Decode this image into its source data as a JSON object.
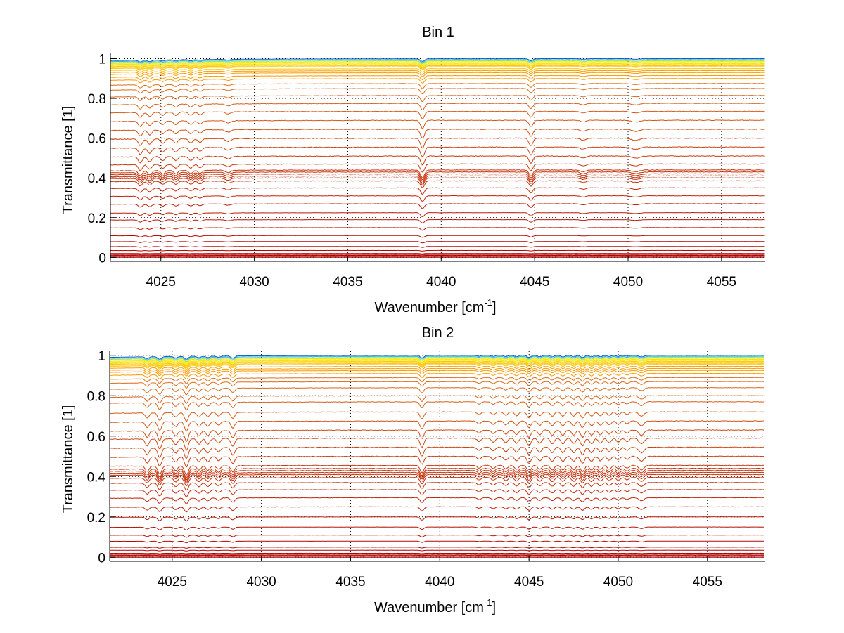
{
  "chart_data": [
    {
      "type": "line",
      "title": "Bin 1",
      "xlabel": "Wavenumber [cm^-1]",
      "xlabel_main": "Wavenumber [cm",
      "xlabel_sup": "-1",
      "xlabel_end": "]",
      "ylabel": "Transmittance [1]",
      "xlim": [
        4022.3,
        4057.3
      ],
      "ylim": [
        -0.02,
        1.03
      ],
      "xticks": [
        4025,
        4030,
        4035,
        4040,
        4045,
        4050,
        4055
      ],
      "xtick_labels": [
        "4025",
        "4030",
        "4035",
        "4040",
        "4045",
        "4050",
        "4055"
      ],
      "yticks": [
        0,
        0.2,
        0.4,
        0.6,
        0.8,
        1
      ],
      "ytick_labels": [
        "0",
        "0.2",
        "0.4",
        "0.6",
        "0.8",
        "1"
      ],
      "grid": true,
      "colormap": "jet (upper half: dark red → orange → yellow → cyan → blue)",
      "series_description": "Family of transmittance spectra at many attenuation levels, each a nearly flat baseline with absorption dips",
      "baselines": [
        0.0,
        0.005,
        0.01,
        0.015,
        0.02,
        0.035,
        0.055,
        0.08,
        0.11,
        0.15,
        0.19,
        0.225,
        0.27,
        0.31,
        0.35,
        0.385,
        0.4,
        0.41,
        0.42,
        0.43,
        0.44,
        0.47,
        0.51,
        0.555,
        0.6,
        0.645,
        0.69,
        0.735,
        0.775,
        0.815,
        0.85,
        0.875,
        0.9,
        0.915,
        0.93,
        0.94,
        0.95,
        0.96,
        0.965,
        0.97,
        0.975,
        0.98,
        0.985,
        0.99,
        0.995,
        1.0
      ],
      "absorption_lines": [
        {
          "x": 4023.9,
          "depth": 0.06,
          "width": 0.15
        },
        {
          "x": 4024.4,
          "depth": 0.05,
          "width": 0.15
        },
        {
          "x": 4025.1,
          "depth": 0.04,
          "width": 0.15
        },
        {
          "x": 4025.8,
          "depth": 0.04,
          "width": 0.15
        },
        {
          "x": 4026.6,
          "depth": 0.04,
          "width": 0.15
        },
        {
          "x": 4027.1,
          "depth": 0.035,
          "width": 0.15
        },
        {
          "x": 4028.6,
          "depth": 0.025,
          "width": 0.2
        },
        {
          "x": 4039.0,
          "depth": 0.09,
          "width": 0.15
        },
        {
          "x": 4044.8,
          "depth": 0.07,
          "width": 0.15
        },
        {
          "x": 4047.6,
          "depth": 0.02,
          "width": 0.2
        },
        {
          "x": 4050.4,
          "depth": 0.02,
          "width": 0.3
        }
      ]
    },
    {
      "type": "line",
      "title": "Bin 2",
      "xlabel": "Wavenumber [cm^-1]",
      "xlabel_main": "Wavenumber [cm",
      "xlabel_sup": "-1",
      "xlabel_end": "]",
      "ylabel": "Transmittance [1]",
      "xlim": [
        4021.5,
        4058.2
      ],
      "ylim": [
        -0.02,
        1.02
      ],
      "xticks": [
        4025,
        4030,
        4035,
        4040,
        4045,
        4050,
        4055
      ],
      "xtick_labels": [
        "4025",
        "4030",
        "4035",
        "4040",
        "4045",
        "4050",
        "4055"
      ],
      "yticks": [
        0,
        0.2,
        0.4,
        0.6,
        0.8,
        1
      ],
      "ytick_labels": [
        "0",
        "0.2",
        "0.4",
        "0.6",
        "0.8",
        "1"
      ],
      "grid": true,
      "colormap": "jet (upper half: dark red → orange → yellow → cyan → blue)",
      "series_description": "Family of transmittance spectra at many attenuation levels, each a nearly flat baseline with absorption dips",
      "baselines": [
        0.0,
        0.005,
        0.01,
        0.015,
        0.02,
        0.035,
        0.05,
        0.08,
        0.11,
        0.15,
        0.2,
        0.25,
        0.295,
        0.335,
        0.37,
        0.395,
        0.41,
        0.42,
        0.43,
        0.44,
        0.455,
        0.5,
        0.545,
        0.59,
        0.63,
        0.675,
        0.72,
        0.77,
        0.8,
        0.84,
        0.87,
        0.89,
        0.91,
        0.925,
        0.935,
        0.945,
        0.955,
        0.96,
        0.965,
        0.97,
        0.975,
        0.98,
        0.985,
        0.99,
        0.995,
        1.0
      ],
      "absorption_lines": [
        {
          "x": 4023.6,
          "depth": 0.06,
          "width": 0.15
        },
        {
          "x": 4024.3,
          "depth": 0.09,
          "width": 0.15
        },
        {
          "x": 4025.2,
          "depth": 0.05,
          "width": 0.15
        },
        {
          "x": 4025.8,
          "depth": 0.1,
          "width": 0.15
        },
        {
          "x": 4026.5,
          "depth": 0.05,
          "width": 0.15
        },
        {
          "x": 4027.0,
          "depth": 0.05,
          "width": 0.15
        },
        {
          "x": 4027.6,
          "depth": 0.04,
          "width": 0.15
        },
        {
          "x": 4028.4,
          "depth": 0.07,
          "width": 0.15
        },
        {
          "x": 4039.0,
          "depth": 0.08,
          "width": 0.15
        },
        {
          "x": 4042.2,
          "depth": 0.03,
          "width": 0.15
        },
        {
          "x": 4043.0,
          "depth": 0.035,
          "width": 0.15
        },
        {
          "x": 4043.7,
          "depth": 0.04,
          "width": 0.15
        },
        {
          "x": 4044.3,
          "depth": 0.045,
          "width": 0.15
        },
        {
          "x": 4045.0,
          "depth": 0.07,
          "width": 0.15
        },
        {
          "x": 4045.6,
          "depth": 0.045,
          "width": 0.15
        },
        {
          "x": 4046.3,
          "depth": 0.05,
          "width": 0.15
        },
        {
          "x": 4046.9,
          "depth": 0.05,
          "width": 0.15
        },
        {
          "x": 4047.5,
          "depth": 0.05,
          "width": 0.15
        },
        {
          "x": 4048.0,
          "depth": 0.07,
          "width": 0.15
        },
        {
          "x": 4048.5,
          "depth": 0.05,
          "width": 0.15
        },
        {
          "x": 4049.0,
          "depth": 0.045,
          "width": 0.15
        },
        {
          "x": 4049.5,
          "depth": 0.04,
          "width": 0.15
        },
        {
          "x": 4050.0,
          "depth": 0.035,
          "width": 0.15
        },
        {
          "x": 4050.5,
          "depth": 0.03,
          "width": 0.15
        },
        {
          "x": 4051.3,
          "depth": 0.05,
          "width": 0.2
        }
      ]
    }
  ]
}
